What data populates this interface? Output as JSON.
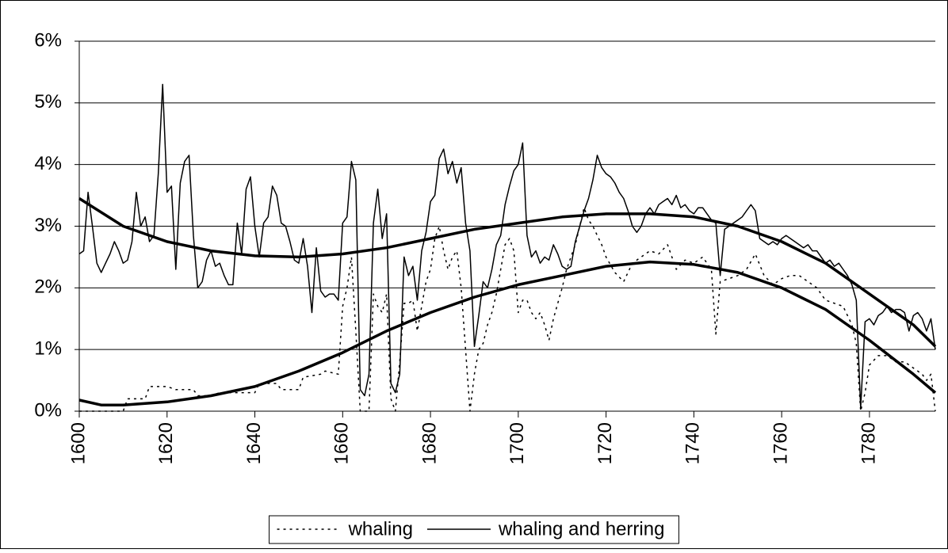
{
  "chart_data": {
    "type": "line",
    "xlim": [
      1600,
      1795
    ],
    "xticks": [
      1600,
      1620,
      1640,
      1660,
      1680,
      1700,
      1720,
      1740,
      1760,
      1780
    ],
    "ylim": [
      0,
      6
    ],
    "yticks": [
      {
        "value": 0,
        "label": "0%"
      },
      {
        "value": 1,
        "label": "1%"
      },
      {
        "value": 2,
        "label": "2%"
      },
      {
        "value": 3,
        "label": "3%"
      },
      {
        "value": 4,
        "label": "4%"
      },
      {
        "value": 5,
        "label": "5%"
      },
      {
        "value": 6,
        "label": "6%"
      }
    ],
    "grid": true,
    "legend": "bottom",
    "series": [
      {
        "name": "whaling",
        "color": "#000000",
        "style": "dotted",
        "width": "thin",
        "x": [
          1600,
          1610,
          1611,
          1615,
          1616,
          1620,
          1622,
          1626,
          1627,
          1630,
          1632,
          1640,
          1641,
          1645,
          1646,
          1650,
          1651,
          1655,
          1656,
          1659,
          1660,
          1661,
          1662,
          1663,
          1664,
          1665,
          1666,
          1667,
          1668,
          1669,
          1670,
          1671,
          1672,
          1673,
          1674,
          1675,
          1676,
          1677,
          1678,
          1679,
          1680,
          1681,
          1682,
          1683,
          1684,
          1685,
          1686,
          1687,
          1688,
          1689,
          1690,
          1691,
          1692,
          1693,
          1694,
          1695,
          1696,
          1697,
          1698,
          1699,
          1700,
          1701,
          1702,
          1703,
          1704,
          1705,
          1706,
          1707,
          1708,
          1709,
          1710,
          1711,
          1712,
          1713,
          1714,
          1715,
          1716,
          1717,
          1718,
          1719,
          1720,
          1722,
          1724,
          1726,
          1728,
          1730,
          1732,
          1734,
          1736,
          1738,
          1740,
          1742,
          1744,
          1745,
          1746,
          1748,
          1750,
          1752,
          1754,
          1756,
          1758,
          1760,
          1762,
          1764,
          1766,
          1768,
          1770,
          1772,
          1774,
          1776,
          1777,
          1778,
          1779,
          1780,
          1782,
          1784,
          1786,
          1788,
          1790,
          1792,
          1793,
          1794,
          1795
        ],
        "values": [
          0,
          0,
          0.2,
          0.2,
          0.4,
          0.4,
          0.35,
          0.35,
          0.25,
          0.25,
          0.3,
          0.3,
          0.45,
          0.45,
          0.35,
          0.35,
          0.55,
          0.6,
          0.65,
          0.6,
          1.7,
          2.0,
          2.5,
          1.3,
          0,
          0,
          0,
          1.9,
          1.7,
          1.6,
          1.9,
          0.2,
          0,
          0.8,
          1.75,
          1.75,
          1.8,
          1.3,
          1.7,
          2.1,
          2.3,
          2.8,
          3.0,
          2.6,
          2.3,
          2.5,
          2.6,
          2.0,
          1.0,
          0,
          0.6,
          1.0,
          1.1,
          1.4,
          1.6,
          1.9,
          2.3,
          2.7,
          2.8,
          2.6,
          1.6,
          1.8,
          1.8,
          1.6,
          1.5,
          1.6,
          1.4,
          1.15,
          1.5,
          1.75,
          2.0,
          2.3,
          2.5,
          2.7,
          3.0,
          3.3,
          3.1,
          3.0,
          2.85,
          2.7,
          2.5,
          2.25,
          2.1,
          2.4,
          2.5,
          2.6,
          2.55,
          2.7,
          2.3,
          2.45,
          2.4,
          2.5,
          2.3,
          1.25,
          2.1,
          2.15,
          2.2,
          2.3,
          2.55,
          2.2,
          2.05,
          2.15,
          2.2,
          2.2,
          2.1,
          2.0,
          1.8,
          1.75,
          1.7,
          1.4,
          1.1,
          0,
          0.3,
          0.75,
          0.9,
          0.9,
          0.8,
          0.8,
          0.7,
          0.6,
          0.5,
          0.6,
          0
        ]
      },
      {
        "name": "whaling and herring",
        "color": "#000000",
        "style": "solid",
        "width": "thin",
        "x": [
          1600,
          1601,
          1602,
          1603,
          1604,
          1605,
          1606,
          1607,
          1608,
          1609,
          1610,
          1611,
          1612,
          1613,
          1614,
          1615,
          1616,
          1617,
          1618,
          1619,
          1620,
          1621,
          1622,
          1623,
          1624,
          1625,
          1626,
          1627,
          1628,
          1629,
          1630,
          1631,
          1632,
          1633,
          1634,
          1635,
          1636,
          1637,
          1638,
          1639,
          1640,
          1641,
          1642,
          1643,
          1644,
          1645,
          1646,
          1647,
          1648,
          1649,
          1650,
          1651,
          1652,
          1653,
          1654,
          1655,
          1656,
          1657,
          1658,
          1659,
          1660,
          1661,
          1662,
          1663,
          1664,
          1665,
          1666,
          1667,
          1668,
          1669,
          1670,
          1671,
          1672,
          1673,
          1674,
          1675,
          1676,
          1677,
          1678,
          1679,
          1680,
          1681,
          1682,
          1683,
          1684,
          1685,
          1686,
          1687,
          1688,
          1689,
          1690,
          1691,
          1692,
          1693,
          1694,
          1695,
          1696,
          1697,
          1698,
          1699,
          1700,
          1701,
          1702,
          1703,
          1704,
          1705,
          1706,
          1707,
          1708,
          1709,
          1710,
          1711,
          1712,
          1713,
          1714,
          1715,
          1716,
          1717,
          1718,
          1719,
          1720,
          1721,
          1722,
          1723,
          1724,
          1725,
          1726,
          1727,
          1728,
          1729,
          1730,
          1731,
          1732,
          1733,
          1734,
          1735,
          1736,
          1737,
          1738,
          1739,
          1740,
          1741,
          1742,
          1743,
          1744,
          1745,
          1746,
          1747,
          1748,
          1749,
          1750,
          1751,
          1752,
          1753,
          1754,
          1755,
          1756,
          1757,
          1758,
          1759,
          1760,
          1761,
          1762,
          1763,
          1764,
          1765,
          1766,
          1767,
          1768,
          1769,
          1770,
          1771,
          1772,
          1773,
          1774,
          1775,
          1776,
          1777,
          1778,
          1779,
          1780,
          1781,
          1782,
          1783,
          1784,
          1785,
          1786,
          1787,
          1788,
          1789,
          1790,
          1791,
          1792,
          1793,
          1794,
          1795
        ],
        "values": [
          2.55,
          2.6,
          3.55,
          3.0,
          2.4,
          2.25,
          2.4,
          2.55,
          2.75,
          2.6,
          2.4,
          2.45,
          2.75,
          3.55,
          3.0,
          3.15,
          2.75,
          2.85,
          3.85,
          5.3,
          3.55,
          3.65,
          2.3,
          3.7,
          4.05,
          4.15,
          2.85,
          2.0,
          2.1,
          2.45,
          2.6,
          2.35,
          2.4,
          2.2,
          2.05,
          2.05,
          3.05,
          2.55,
          3.6,
          3.8,
          3.0,
          2.5,
          3.05,
          3.15,
          3.65,
          3.5,
          3.05,
          3.0,
          2.75,
          2.45,
          2.4,
          2.8,
          2.35,
          1.6,
          2.65,
          1.95,
          1.85,
          1.9,
          1.9,
          1.8,
          3.05,
          3.15,
          4.05,
          3.75,
          0.35,
          0.25,
          0.6,
          3.05,
          3.6,
          2.8,
          3.2,
          0.45,
          0.3,
          0.6,
          2.5,
          2.2,
          2.35,
          1.8,
          2.6,
          2.9,
          3.4,
          3.5,
          4.1,
          4.25,
          3.85,
          4.05,
          3.7,
          3.95,
          3.05,
          2.6,
          1.05,
          1.55,
          2.1,
          2.0,
          2.3,
          2.7,
          2.85,
          3.35,
          3.65,
          3.9,
          4.0,
          4.35,
          2.85,
          2.5,
          2.6,
          2.4,
          2.5,
          2.45,
          2.7,
          2.55,
          2.35,
          2.3,
          2.35,
          2.75,
          3.0,
          3.25,
          3.45,
          3.75,
          4.15,
          3.95,
          3.85,
          3.8,
          3.7,
          3.55,
          3.45,
          3.25,
          3.0,
          2.9,
          3.0,
          3.2,
          3.3,
          3.2,
          3.35,
          3.4,
          3.45,
          3.35,
          3.5,
          3.3,
          3.35,
          3.25,
          3.2,
          3.3,
          3.3,
          3.2,
          3.1,
          3.05,
          2.2,
          2.95,
          3.0,
          3.05,
          3.1,
          3.15,
          3.25,
          3.35,
          3.25,
          2.8,
          2.75,
          2.7,
          2.75,
          2.7,
          2.8,
          2.85,
          2.8,
          2.75,
          2.7,
          2.65,
          2.7,
          2.6,
          2.6,
          2.5,
          2.4,
          2.45,
          2.35,
          2.4,
          2.3,
          2.2,
          2.05,
          1.8,
          0.05,
          1.45,
          1.5,
          1.4,
          1.55,
          1.6,
          1.7,
          1.6,
          1.65,
          1.65,
          1.6,
          1.3,
          1.55,
          1.6,
          1.5,
          1.3,
          1.5,
          1.0
        ]
      },
      {
        "color": "#000000",
        "style": "solid",
        "width": "thick",
        "x": [
          1600,
          1610,
          1620,
          1630,
          1640,
          1650,
          1660,
          1670,
          1680,
          1690,
          1700,
          1710,
          1720,
          1730,
          1740,
          1750,
          1760,
          1770,
          1780,
          1790,
          1795
        ],
        "values": [
          3.45,
          3.0,
          2.75,
          2.6,
          2.52,
          2.5,
          2.55,
          2.65,
          2.8,
          2.95,
          3.05,
          3.15,
          3.2,
          3.2,
          3.15,
          3.0,
          2.75,
          2.4,
          1.9,
          1.4,
          1.05
        ]
      },
      {
        "color": "#000000",
        "style": "solid",
        "width": "thick",
        "x": [
          1600,
          1605,
          1610,
          1620,
          1630,
          1640,
          1650,
          1660,
          1670,
          1680,
          1690,
          1700,
          1710,
          1720,
          1730,
          1740,
          1750,
          1760,
          1770,
          1780,
          1790,
          1795
        ],
        "values": [
          0.18,
          0.1,
          0.1,
          0.15,
          0.25,
          0.4,
          0.65,
          0.95,
          1.3,
          1.6,
          1.85,
          2.05,
          2.2,
          2.35,
          2.42,
          2.38,
          2.25,
          2.0,
          1.65,
          1.15,
          0.6,
          0.3
        ]
      }
    ]
  }
}
